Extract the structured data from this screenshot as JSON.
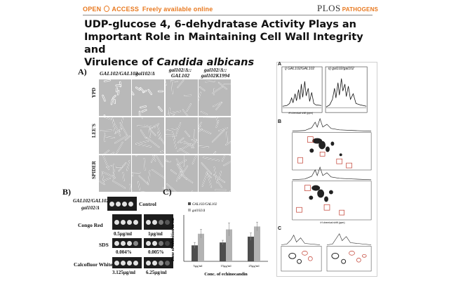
{
  "header": {
    "open_label": "OPEN",
    "access_label": "ACCESS",
    "freely_label": "Freely available online",
    "plos_label": "PLOS",
    "journal_label": "PATHOGENS"
  },
  "title": {
    "line1": "UDP-glucose 4, 6-dehydratase Activity Plays an",
    "line2": "Important Role in Maintaining Cell Wall Integrity and",
    "line3_prefix": "Virulence of ",
    "line3_italic": "Candida albicans"
  },
  "panelA": {
    "label": "A)",
    "columns": [
      "GAL102/GAL102",
      "gal102/Δ",
      "gal102/Δ::",
      "gal102/Δ::"
    ],
    "columns_sub": [
      "",
      "",
      "GAL102",
      "gal102K1994"
    ],
    "rows": [
      "YPD",
      "LEE'S",
      "SPIDER"
    ]
  },
  "panelB": {
    "label": "B)",
    "strain1": "GAL102/GAL102",
    "strain2": "gal102/Δ",
    "control": "Control",
    "congo": "Congo Red",
    "congo_c1": "0.5μg/ml",
    "congo_c2": "1μg/ml",
    "sds": "SDS",
    "sds_c1": "0.004%",
    "sds_c2": "0.005%",
    "calco": "Calcofluor White",
    "calco_c1": "3.125μg/ml",
    "calco_c2": "6.25μg/ml"
  },
  "panelC": {
    "label": "C)",
    "legend1": "GAL102/GAL102",
    "legend2": "gal102/Δ",
    "ylabel": "Zone of inhibition in cm",
    "xlabel": "Conc. of echinocandin"
  },
  "right": {
    "A": "A",
    "Ai": "i) GAL102/GAL102",
    "Aii": "ii) gal102/gal102",
    "B": "B",
    "C": "C",
    "ppm": "¹H chemical shift (ppm)"
  },
  "chart_data": {
    "type": "bar",
    "categories": [
      "5μg/ml",
      "15μg/ml",
      "25μg/ml"
    ],
    "series": [
      {
        "name": "GAL102/GAL102",
        "values": [
          1.1,
          1.3,
          1.7
        ],
        "errors": [
          0.2,
          0.15,
          0.25
        ],
        "color": "#4d4d4d"
      },
      {
        "name": "gal102/Δ",
        "values": [
          1.9,
          2.2,
          2.4
        ],
        "errors": [
          0.3,
          0.45,
          0.3
        ],
        "color": "#b3b3b3"
      }
    ],
    "xlabel": "Conc. of echinocandin",
    "ylabel": "Zone of inhibition in cm",
    "ylim": [
      0,
      3
    ]
  }
}
